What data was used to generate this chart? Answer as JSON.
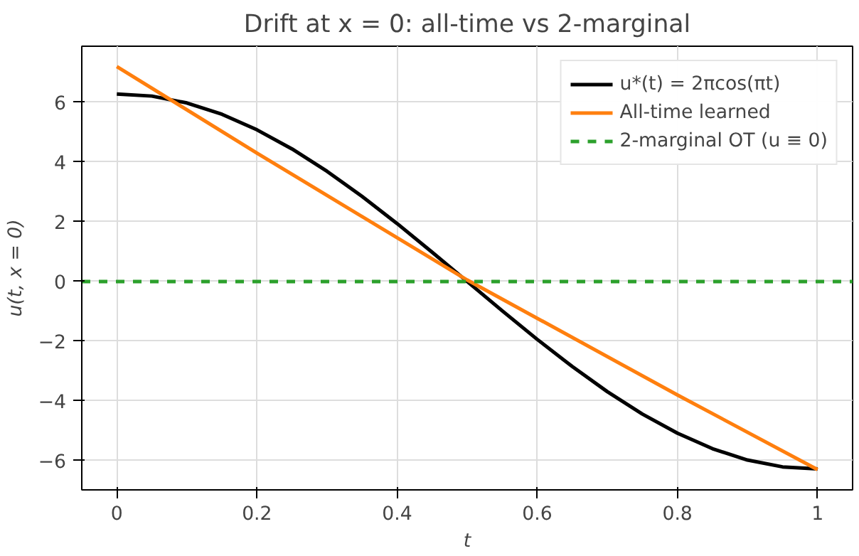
{
  "chart_data": {
    "type": "line",
    "title": "Drift at x = 0: all-time vs 2-marginal",
    "xlabel": "t",
    "ylabel": "u(t, x = 0)",
    "x": [
      0,
      0.05,
      0.1,
      0.15,
      0.2,
      0.25,
      0.3,
      0.35,
      0.4,
      0.45,
      0.5,
      0.55,
      0.6,
      0.65,
      0.7,
      0.75,
      0.8,
      0.85,
      0.9,
      0.95,
      1
    ],
    "series": [
      {
        "name": "u*(t) = 2πcos(πt)",
        "color": "#000000",
        "values": [
          6.28,
          6.21,
          5.98,
          5.6,
          5.08,
          4.44,
          3.69,
          2.85,
          1.94,
          0.98,
          0,
          -0.98,
          -1.94,
          -2.85,
          -3.69,
          -4.44,
          -5.08,
          -5.6,
          -5.98,
          -6.21,
          -6.28
        ]
      },
      {
        "name": "All-time learned",
        "color": "#ff7f0e",
        "x": [
          0,
          0.2,
          0.5,
          0.8,
          1
        ],
        "values": [
          7.2,
          4.3,
          0.05,
          -3.8,
          -6.3
        ]
      }
    ],
    "ref_lines": [
      {
        "axis": "y",
        "value": 0,
        "label": "2-marginal OT (u ≡ 0)",
        "color": "#2ca02c",
        "line_style": "dashed"
      }
    ],
    "xlim": [
      -0.05,
      1.05
    ],
    "ylim": [
      -6.98,
      7.88
    ],
    "xticks": [
      0,
      0.2,
      0.4,
      0.6,
      0.8,
      1
    ],
    "yticks": [
      -6,
      -4,
      -2,
      0,
      2,
      4,
      6
    ],
    "grid": true,
    "legend": "top right",
    "line_style": "solid",
    "marker": "none"
  }
}
